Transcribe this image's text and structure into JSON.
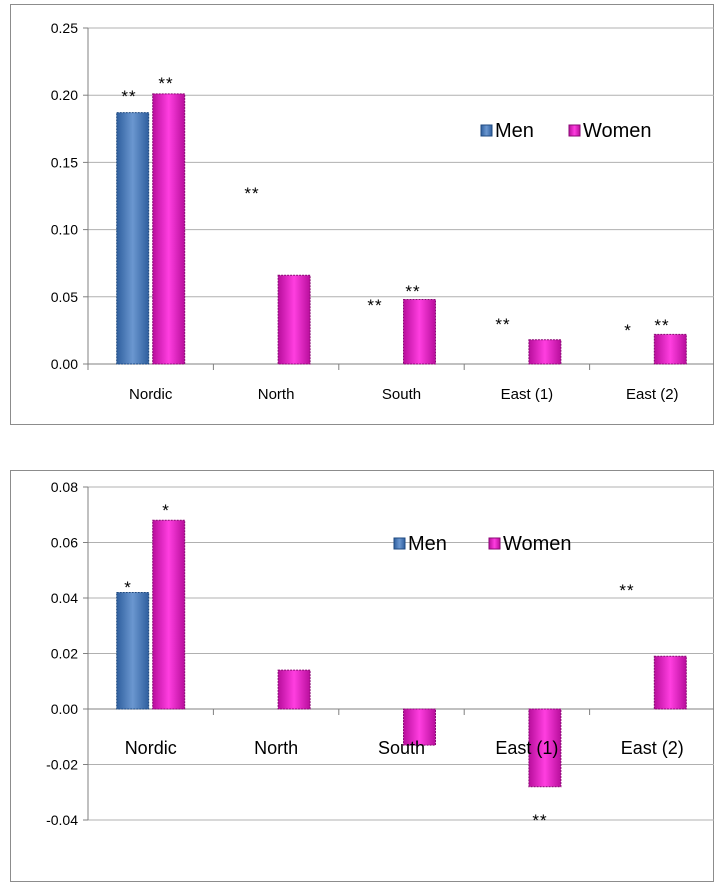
{
  "chart_data": [
    {
      "type": "bar",
      "categories": [
        "Nordic",
        "North",
        "South",
        "East (1)",
        "East (2)"
      ],
      "series": [
        {
          "name": "Men",
          "values": [
            0.187,
            0.0,
            0.0,
            0.0,
            0.0
          ],
          "stars": [
            "**",
            "**",
            "**",
            "**",
            "*"
          ]
        },
        {
          "name": "Women",
          "values": [
            0.201,
            0.066,
            0.048,
            0.018,
            0.022
          ],
          "stars": [
            "**",
            "",
            "**",
            "",
            "**"
          ]
        }
      ],
      "yticks": [
        "0.00",
        "0.05",
        "0.10",
        "0.15",
        "0.20",
        "0.25"
      ],
      "ylim": [
        0,
        0.25
      ],
      "grid": true,
      "legend_position": "top-right",
      "colors": {
        "Men": "#4a7ab8",
        "Women": "#e619c8"
      }
    },
    {
      "type": "bar",
      "categories": [
        "Nordic",
        "North",
        "South",
        "East (1)",
        "East (2)"
      ],
      "series": [
        {
          "name": "Men",
          "values": [
            0.042,
            0.0,
            0.0,
            0.0,
            0.0
          ],
          "stars": [
            "*",
            "",
            "",
            "",
            "**"
          ]
        },
        {
          "name": "Women",
          "values": [
            0.068,
            0.014,
            -0.013,
            -0.028,
            0.019
          ],
          "stars": [
            "*",
            "",
            "",
            "**",
            ""
          ]
        }
      ],
      "yticks": [
        "-0.04",
        "-0.02",
        "0.00",
        "0.02",
        "0.04",
        "0.06",
        "0.08"
      ],
      "ylim": [
        -0.04,
        0.08
      ],
      "grid": true,
      "legend_position": "top-right",
      "colors": {
        "Men": "#4a7ab8",
        "Women": "#e619c8"
      }
    }
  ]
}
